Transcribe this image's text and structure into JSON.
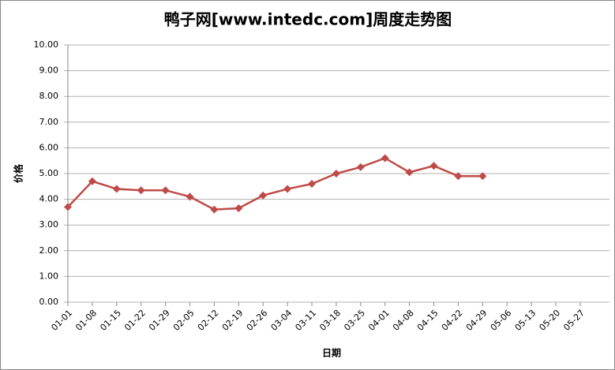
{
  "chart_data": {
    "type": "line",
    "title": "鸭子网[www.intedc.com]周度走势图",
    "x_label": "日期",
    "y_label": "价格",
    "categories": [
      "01-01",
      "01-08",
      "01-15",
      "01-22",
      "01-29",
      "02-05",
      "02-12",
      "02-19",
      "02-26",
      "03-04",
      "03-11",
      "03-18",
      "03-25",
      "04-01",
      "04-08",
      "04-15",
      "04-22",
      "04-29",
      "05-06",
      "05-13",
      "05-20",
      "05-27"
    ],
    "series": [
      {
        "name": "价格",
        "color": "#be4b48",
        "values": [
          3.7,
          4.7,
          4.4,
          4.35,
          4.35,
          4.1,
          3.6,
          3.65,
          4.15,
          4.4,
          4.6,
          5.0,
          5.25,
          5.6,
          5.05,
          5.3,
          4.9,
          4.9,
          null,
          null,
          null,
          null
        ]
      }
    ],
    "ylim": [
      0,
      10
    ],
    "yticks": [
      {
        "value": 0,
        "label": "0.00"
      },
      {
        "value": 1,
        "label": "1.00"
      },
      {
        "value": 2,
        "label": "2.00"
      },
      {
        "value": 3,
        "label": "3.00"
      },
      {
        "value": 4,
        "label": "4.00"
      },
      {
        "value": 5,
        "label": "5.00"
      },
      {
        "value": 6,
        "label": "6.00"
      },
      {
        "value": 7,
        "label": "7.00"
      },
      {
        "value": 8,
        "label": "8.00"
      },
      {
        "value": 9,
        "label": "9.00"
      },
      {
        "value": 10,
        "label": "10.00"
      }
    ],
    "grid": true
  }
}
